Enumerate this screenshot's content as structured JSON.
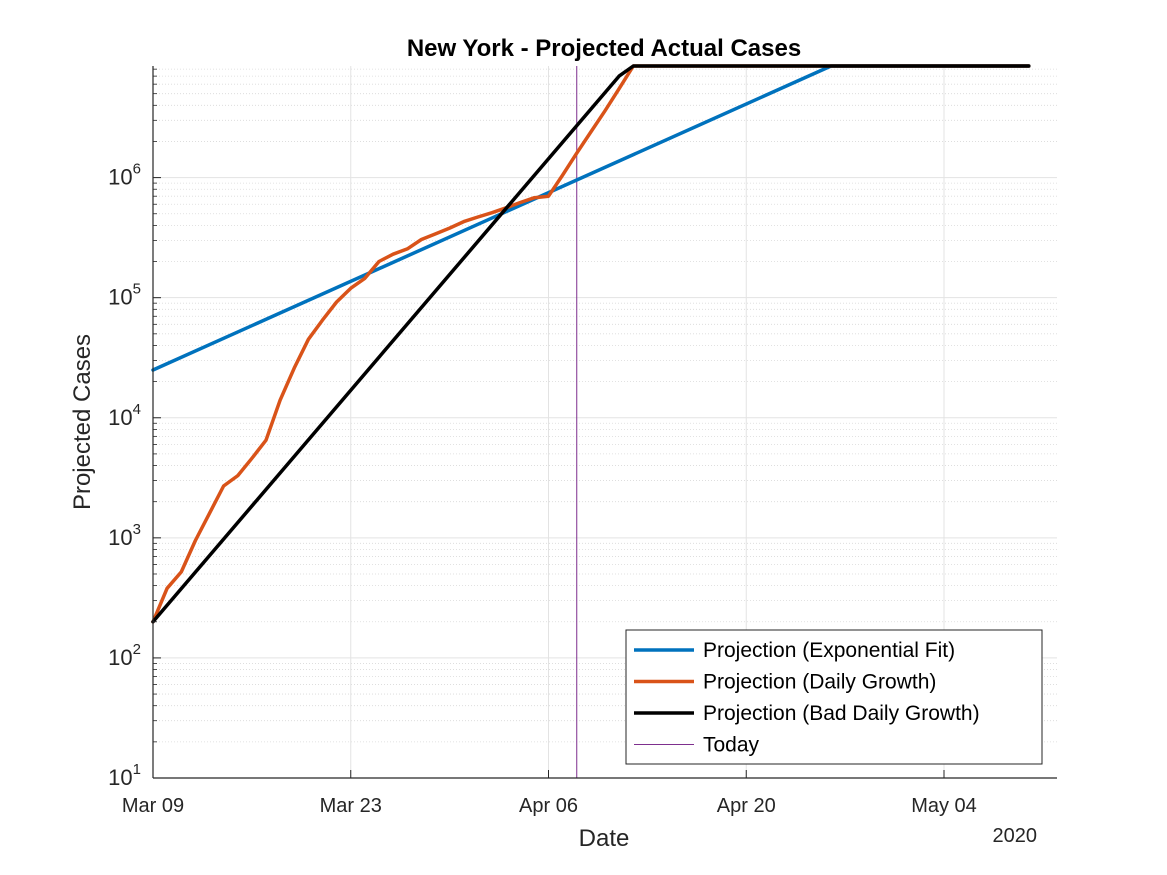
{
  "chart_data": {
    "type": "line",
    "title": "New York - Projected Actual Cases",
    "xlabel": "Date",
    "ylabel": "Projected Cases",
    "year_label": "2020",
    "x_scale": "date",
    "y_scale": "log",
    "xlim": [
      "2020-03-09",
      "2020-05-12"
    ],
    "ylim": [
      10,
      8500000
    ],
    "x_ticks": [
      {
        "date": "2020-03-09",
        "label": "Mar 09"
      },
      {
        "date": "2020-03-23",
        "label": "Mar 23"
      },
      {
        "date": "2020-04-06",
        "label": "Apr 06"
      },
      {
        "date": "2020-04-20",
        "label": "Apr 20"
      },
      {
        "date": "2020-05-04",
        "label": "May 04"
      }
    ],
    "y_ticks": [
      {
        "value": 10,
        "base": "10",
        "exp": "1"
      },
      {
        "value": 100,
        "base": "10",
        "exp": "2"
      },
      {
        "value": 1000,
        "base": "10",
        "exp": "3"
      },
      {
        "value": 10000,
        "base": "10",
        "exp": "4"
      },
      {
        "value": 100000,
        "base": "10",
        "exp": "5"
      },
      {
        "value": 1000000,
        "base": "10",
        "exp": "6"
      }
    ],
    "grid": true,
    "legend_position": "bottom-right",
    "series": [
      {
        "name": "Projection (Exponential Fit)",
        "color": "#0072BD",
        "points": [
          [
            "2020-03-09",
            25000
          ],
          [
            "2020-04-26",
            8500000
          ],
          [
            "2020-05-10",
            8500000
          ]
        ]
      },
      {
        "name": "Projection (Daily Growth)",
        "color": "#D95319",
        "points": [
          [
            "2020-03-09",
            200
          ],
          [
            "2020-03-10",
            380
          ],
          [
            "2020-03-11",
            520
          ],
          [
            "2020-03-12",
            950
          ],
          [
            "2020-03-13",
            1600
          ],
          [
            "2020-03-14",
            2700
          ],
          [
            "2020-03-15",
            3300
          ],
          [
            "2020-03-16",
            4600
          ],
          [
            "2020-03-17",
            6500
          ],
          [
            "2020-03-18",
            14000
          ],
          [
            "2020-03-19",
            26000
          ],
          [
            "2020-03-20",
            45000
          ],
          [
            "2020-03-21",
            65000
          ],
          [
            "2020-03-22",
            92000
          ],
          [
            "2020-03-23",
            120000
          ],
          [
            "2020-03-24",
            145000
          ],
          [
            "2020-03-25",
            200000
          ],
          [
            "2020-03-26",
            230000
          ],
          [
            "2020-03-27",
            255000
          ],
          [
            "2020-03-28",
            305000
          ],
          [
            "2020-03-29",
            340000
          ],
          [
            "2020-03-30",
            380000
          ],
          [
            "2020-03-31",
            430000
          ],
          [
            "2020-04-01",
            470000
          ],
          [
            "2020-04-02",
            510000
          ],
          [
            "2020-04-03",
            560000
          ],
          [
            "2020-04-04",
            620000
          ],
          [
            "2020-04-05",
            680000
          ],
          [
            "2020-04-06",
            700000
          ],
          [
            "2020-04-07",
            1050000
          ],
          [
            "2020-04-08",
            1600000
          ],
          [
            "2020-04-09",
            2400000
          ],
          [
            "2020-04-10",
            3600000
          ],
          [
            "2020-04-11",
            5500000
          ],
          [
            "2020-04-12",
            8500000
          ],
          [
            "2020-05-10",
            8500000
          ]
        ]
      },
      {
        "name": "Projection (Bad Daily Growth)",
        "color": "#000000",
        "points": [
          [
            "2020-03-09",
            200
          ],
          [
            "2020-04-11",
            7000000
          ],
          [
            "2020-04-12",
            8500000
          ],
          [
            "2020-05-10",
            8500000
          ]
        ]
      }
    ],
    "reference_lines": [
      {
        "name": "Today",
        "date": "2020-04-08",
        "color": "#7E2F8E"
      }
    ]
  }
}
